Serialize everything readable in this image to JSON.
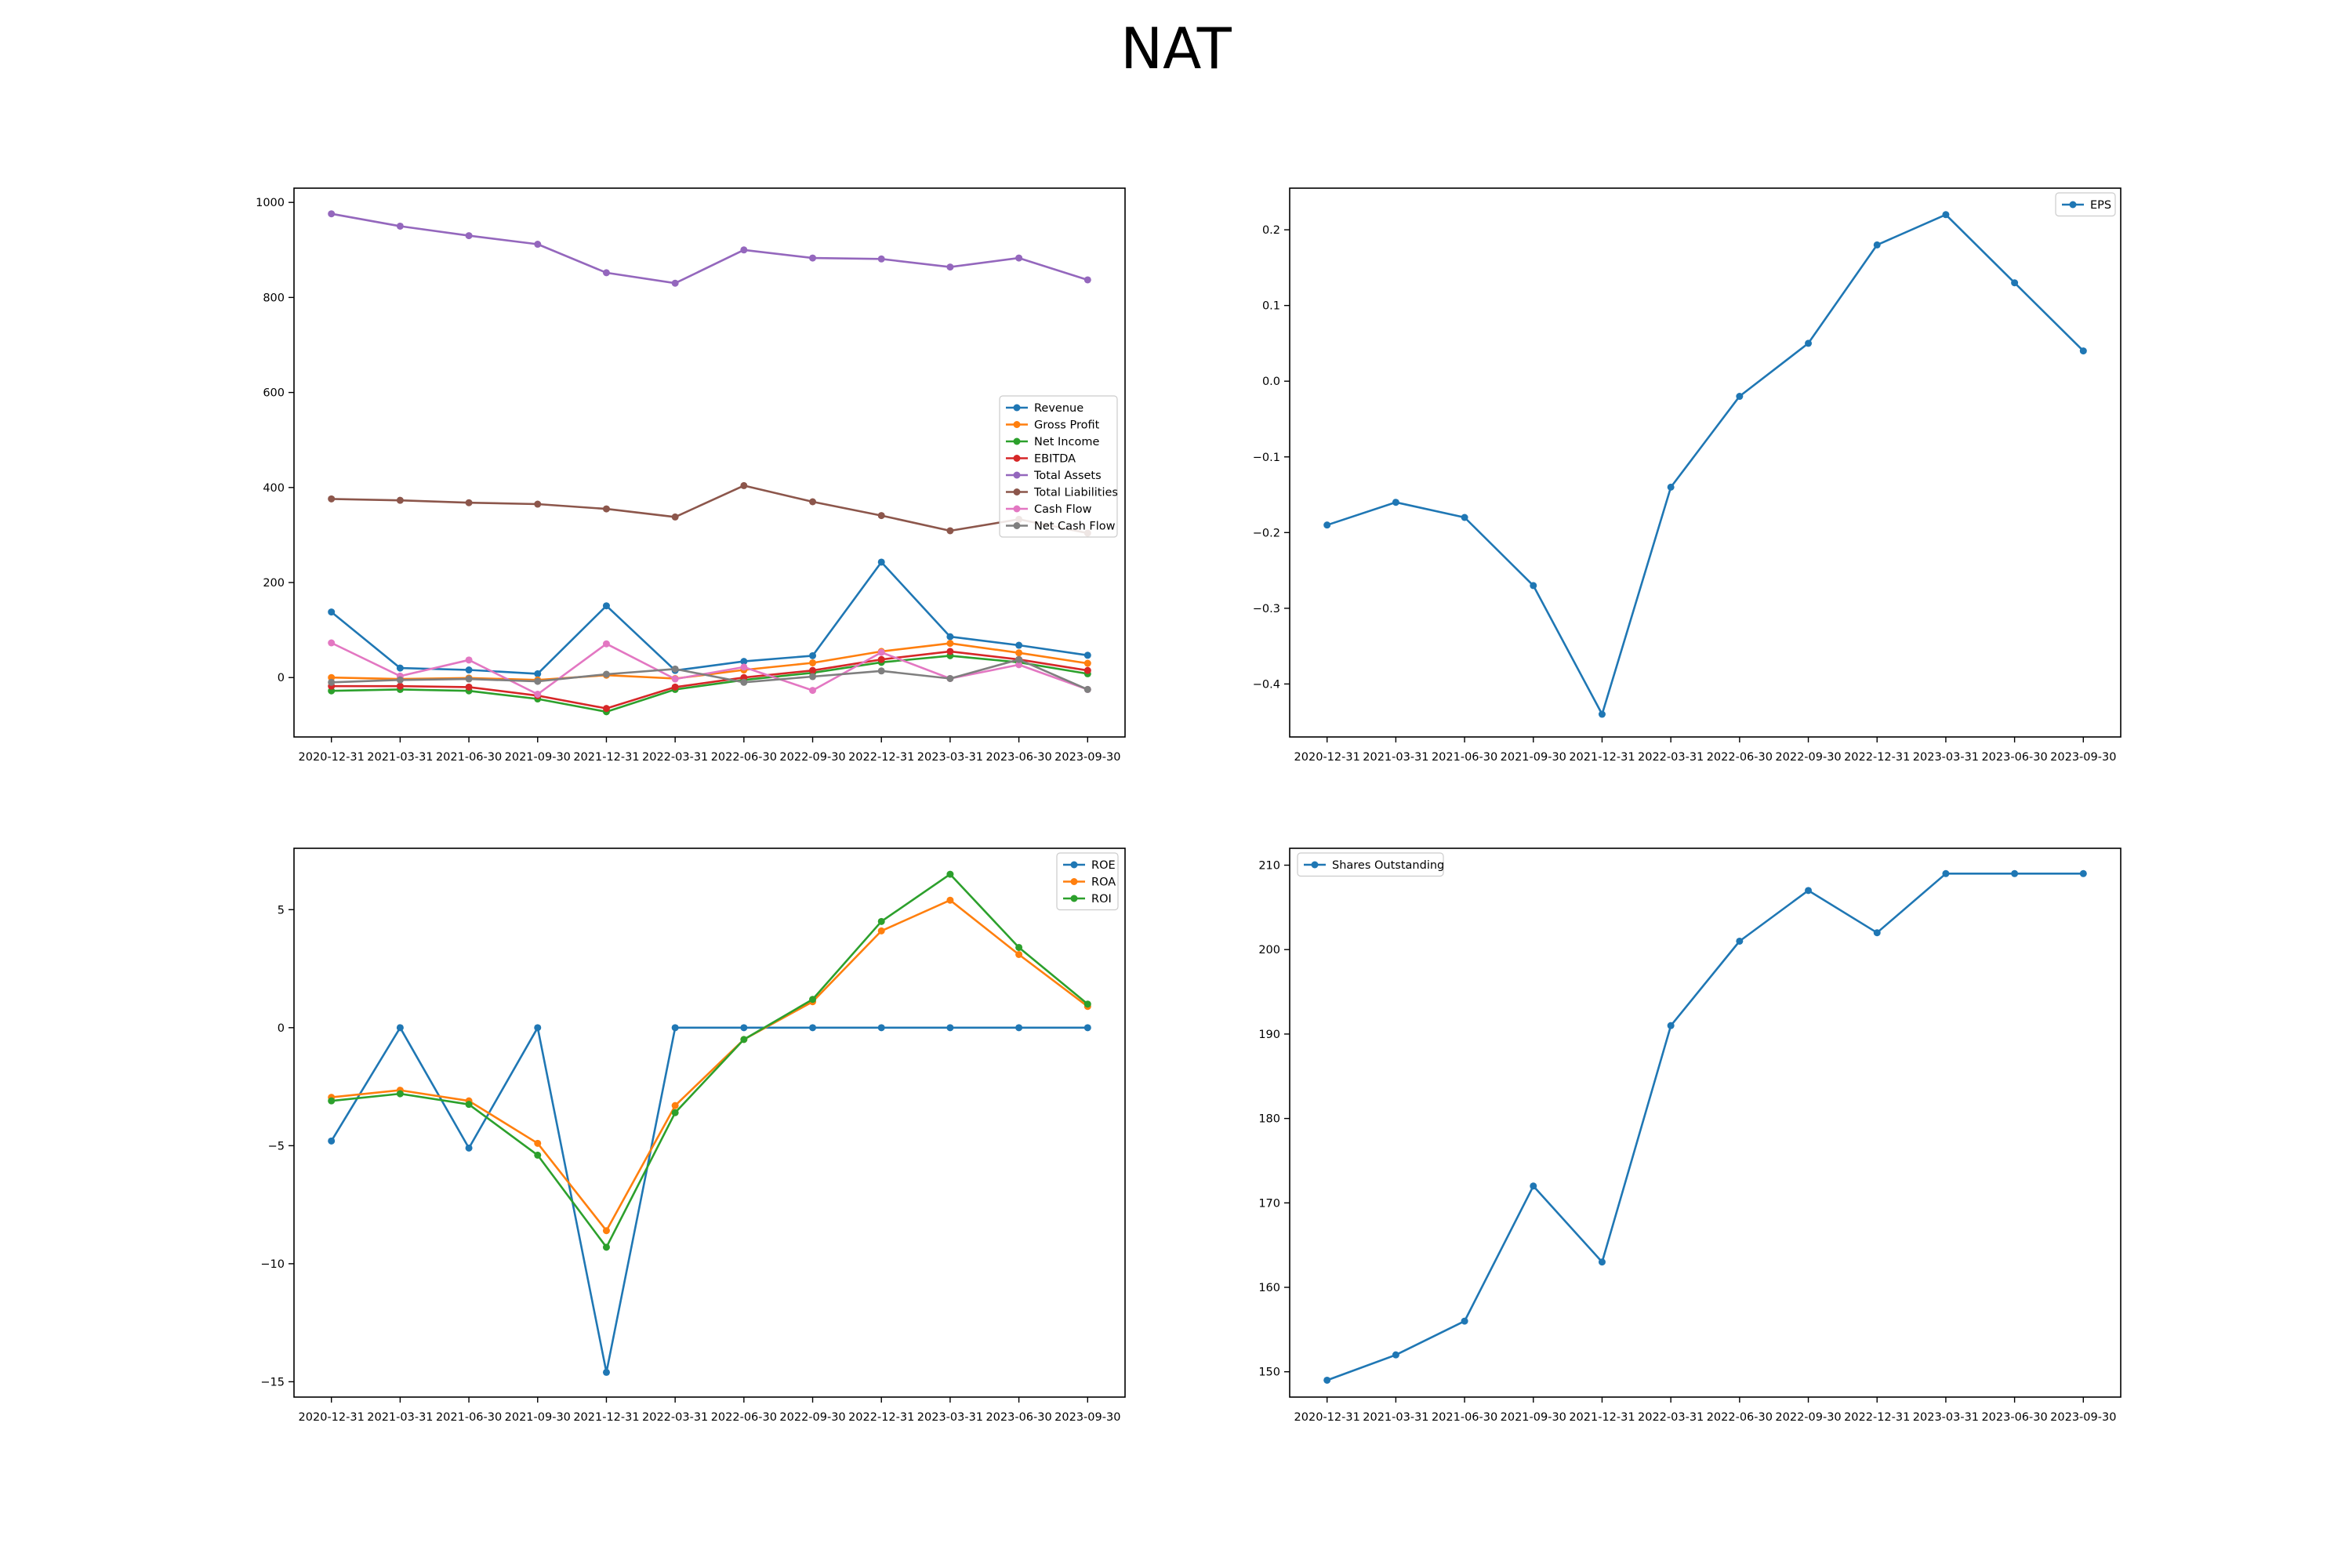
{
  "figure_title": "NAT",
  "dates": [
    "2020-12-31",
    "2021-03-31",
    "2021-06-30",
    "2021-09-30",
    "2021-12-31",
    "2022-03-31",
    "2022-06-30",
    "2022-09-30",
    "2022-12-31",
    "2023-03-31",
    "2023-06-30",
    "2023-09-30"
  ],
  "chart_data": [
    {
      "type": "line",
      "title": "",
      "x": [
        "2020-12-31",
        "2021-03-31",
        "2021-06-30",
        "2021-09-30",
        "2021-12-31",
        "2022-03-31",
        "2022-06-30",
        "2022-09-30",
        "2022-12-31",
        "2023-03-31",
        "2023-06-30",
        "2023-09-30"
      ],
      "ylim": [
        -125,
        1030
      ],
      "yticks": [
        0,
        200,
        400,
        600,
        800,
        1000
      ],
      "grid": false,
      "legend": "center-right",
      "series": [
        {
          "name": "Revenue",
          "color": "#1f77b4",
          "values": [
            138,
            20,
            16,
            8,
            151,
            15,
            34,
            46,
            243,
            86,
            68,
            47
          ]
        },
        {
          "name": "Gross Profit",
          "color": "#ff7f0e",
          "values": [
            0,
            -3,
            -1,
            -5,
            5,
            -2,
            16,
            31,
            55,
            72,
            52,
            30
          ]
        },
        {
          "name": "Net Income",
          "color": "#2ca02c",
          "values": [
            -28,
            -25,
            -28,
            -45,
            -72,
            -25,
            -5,
            10,
            32,
            46,
            32,
            8
          ]
        },
        {
          "name": "EBITDA",
          "color": "#d62728",
          "values": [
            -18,
            -18,
            -20,
            -38,
            -65,
            -20,
            0,
            15,
            38,
            55,
            38,
            15
          ]
        },
        {
          "name": "Total Assets",
          "color": "#9467bd",
          "values": [
            976,
            950,
            930,
            912,
            852,
            830,
            900,
            883,
            881,
            864,
            883,
            837
          ]
        },
        {
          "name": "Total Liabilities",
          "color": "#8c564b",
          "values": [
            376,
            373,
            368,
            365,
            355,
            338,
            404,
            370,
            341,
            309,
            333,
            304
          ]
        },
        {
          "name": "Cash Flow",
          "color": "#e377c2",
          "values": [
            73,
            3,
            37,
            -35,
            71,
            -3,
            22,
            -27,
            53,
            -2,
            27,
            -25
          ]
        },
        {
          "name": "Net Cash Flow",
          "color": "#7f7f7f",
          "values": [
            -10,
            -5,
            -3,
            -8,
            7,
            18,
            -10,
            2,
            14,
            -2,
            38,
            -25
          ]
        }
      ]
    },
    {
      "type": "line",
      "title": "",
      "x": [
        "2020-12-31",
        "2021-03-31",
        "2021-06-30",
        "2021-09-30",
        "2021-12-31",
        "2022-03-31",
        "2022-06-30",
        "2022-09-30",
        "2022-12-31",
        "2023-03-31",
        "2023-06-30",
        "2023-09-30"
      ],
      "ylim": [
        -0.47,
        0.255
      ],
      "yticks": [
        -0.4,
        -0.3,
        -0.2,
        -0.1,
        0.0,
        0.1,
        0.2
      ],
      "ytick_labels": [
        "−0.4",
        "−0.3",
        "−0.2",
        "−0.1",
        "0.0",
        "0.1",
        "0.2"
      ],
      "grid": false,
      "legend": "upper right",
      "series": [
        {
          "name": "EPS",
          "color": "#1f77b4",
          "values": [
            -0.19,
            -0.16,
            -0.18,
            -0.27,
            -0.44,
            -0.14,
            -0.02,
            0.05,
            0.18,
            0.22,
            0.13,
            0.04
          ]
        }
      ]
    },
    {
      "type": "line",
      "title": "",
      "x": [
        "2020-12-31",
        "2021-03-31",
        "2021-06-30",
        "2021-09-30",
        "2021-12-31",
        "2022-03-31",
        "2022-06-30",
        "2022-09-30",
        "2022-12-31",
        "2023-03-31",
        "2023-06-30",
        "2023-09-30"
      ],
      "ylim": [
        -15.65,
        7.6
      ],
      "yticks": [
        -15,
        -10,
        -5,
        0,
        5
      ],
      "ytick_labels": [
        "−15",
        "−10",
        "−5",
        "0",
        "5"
      ],
      "grid": false,
      "legend": "upper right",
      "series": [
        {
          "name": "ROE",
          "color": "#1f77b4",
          "values": [
            -4.8,
            0,
            -5.1,
            0,
            -14.6,
            0,
            0,
            0,
            0,
            0,
            0,
            0
          ]
        },
        {
          "name": "ROA",
          "color": "#ff7f0e",
          "values": [
            -2.95,
            -2.65,
            -3.1,
            -4.9,
            -8.6,
            -3.3,
            -0.5,
            1.1,
            4.1,
            5.4,
            3.1,
            0.9
          ]
        },
        {
          "name": "ROI",
          "color": "#2ca02c",
          "values": [
            -3.1,
            -2.8,
            -3.25,
            -5.4,
            -9.3,
            -3.6,
            -0.5,
            1.2,
            4.5,
            6.5,
            3.4,
            1.0
          ]
        }
      ]
    },
    {
      "type": "line",
      "title": "",
      "x": [
        "2020-12-31",
        "2021-03-31",
        "2021-06-30",
        "2021-09-30",
        "2021-12-31",
        "2022-03-31",
        "2022-06-30",
        "2022-09-30",
        "2022-12-31",
        "2023-03-31",
        "2023-06-30",
        "2023-09-30"
      ],
      "ylim": [
        147,
        212
      ],
      "yticks": [
        150,
        160,
        170,
        180,
        190,
        200,
        210
      ],
      "grid": false,
      "legend": "upper left",
      "series": [
        {
          "name": "Shares Outstanding",
          "color": "#1f77b4",
          "values": [
            149,
            152,
            156,
            172,
            163,
            191,
            201,
            207,
            202,
            209,
            209,
            209
          ]
        }
      ]
    }
  ]
}
